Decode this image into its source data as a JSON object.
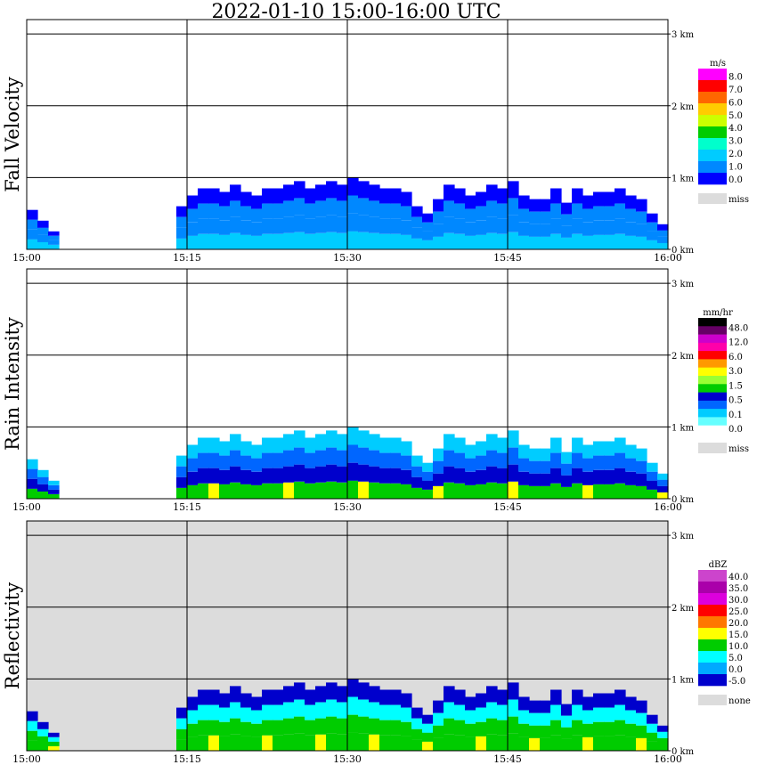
{
  "title": "2022-01-10   15:00-16:00 UTC",
  "colors": {
    "grid": "#000000",
    "missing": "#dcdcdc"
  },
  "chart_data": [
    {
      "type": "heatmap",
      "ylabel": "Fall Velocity",
      "x_ticks": [
        "15:00",
        "15:15",
        "15:30",
        "15:45",
        "16:00"
      ],
      "y_ticks": [
        "0 km",
        "1 km",
        "2 km",
        "3 km"
      ],
      "ylim_km": [
        0,
        3.2
      ],
      "legend": {
        "unit": "m/s",
        "labels": [
          "8.0",
          "7.0",
          "6.0",
          "5.0",
          "4.0",
          "3.0",
          "2.0",
          "1.0",
          "0.0"
        ],
        "colors": [
          "#ff00ff",
          "#ff0000",
          "#ff6600",
          "#ffcc00",
          "#ccff00",
          "#00cc00",
          "#00ffcc",
          "#00ccff",
          "#0088ff",
          "#0000ff"
        ],
        "missing_label": "miss"
      },
      "echo_top_km": [
        0.55,
        0.4,
        0.25,
        0.0,
        0.0,
        0.0,
        0.0,
        0.0,
        0.0,
        0.0,
        0.0,
        0.0,
        0.0,
        0.0,
        0.6,
        0.75,
        0.85,
        0.85,
        0.8,
        0.9,
        0.8,
        0.75,
        0.85,
        0.85,
        0.9,
        0.95,
        0.85,
        0.9,
        0.95,
        0.9,
        1.0,
        0.95,
        0.9,
        0.85,
        0.85,
        0.8,
        0.6,
        0.5,
        0.7,
        0.9,
        0.85,
        0.75,
        0.8,
        0.9,
        0.85,
        0.95,
        0.75,
        0.7,
        0.7,
        0.85,
        0.65,
        0.85,
        0.75,
        0.8,
        0.8,
        0.85,
        0.75,
        0.7,
        0.5,
        0.35
      ],
      "core_level": 3
    },
    {
      "type": "heatmap",
      "ylabel": "Rain Intensity",
      "x_ticks": [
        "15:00",
        "15:15",
        "15:30",
        "15:45",
        "16:00"
      ],
      "y_ticks": [
        "0 km",
        "1 km",
        "2 km",
        "3 km"
      ],
      "ylim_km": [
        0,
        3.2
      ],
      "legend": {
        "unit": "mm/hr",
        "labels": [
          "48.0",
          "12.0",
          "6.0",
          "3.0",
          "1.5",
          "0.5",
          "0.1",
          "0.0"
        ],
        "colors": [
          "#000000",
          "#660066",
          "#cc00cc",
          "#ff00aa",
          "#ff0000",
          "#ff9900",
          "#ffff00",
          "#99ff33",
          "#00cc00",
          "#0000cc",
          "#0066ff",
          "#00ccff",
          "#66ffff",
          "#ffffff"
        ],
        "missing_label": "miss"
      },
      "echo_top_km": [
        0.55,
        0.4,
        0.25,
        0.0,
        0.0,
        0.0,
        0.0,
        0.0,
        0.0,
        0.0,
        0.0,
        0.0,
        0.0,
        0.0,
        0.6,
        0.75,
        0.85,
        0.85,
        0.8,
        0.9,
        0.8,
        0.75,
        0.85,
        0.85,
        0.9,
        0.95,
        0.85,
        0.9,
        0.95,
        0.9,
        1.0,
        0.95,
        0.9,
        0.85,
        0.85,
        0.8,
        0.6,
        0.5,
        0.7,
        0.9,
        0.85,
        0.75,
        0.8,
        0.9,
        0.85,
        0.95,
        0.75,
        0.7,
        0.7,
        0.85,
        0.65,
        0.85,
        0.75,
        0.8,
        0.8,
        0.85,
        0.75,
        0.7,
        0.5,
        0.35
      ],
      "core_level": 7
    },
    {
      "type": "heatmap",
      "ylabel": "Reflectivity",
      "x_ticks": [
        "15:00",
        "15:15",
        "15:30",
        "15:45",
        "16:00"
      ],
      "y_ticks": [
        "0 km",
        "1 km",
        "2 km",
        "3 km"
      ],
      "ylim_km": [
        0,
        3.2
      ],
      "legend": {
        "unit": "dBZ",
        "labels": [
          "40.0",
          "35.0",
          "30.0",
          "25.0",
          "20.0",
          "15.0",
          "10.0",
          "5.0",
          "0.0",
          "-5.0"
        ],
        "colors": [
          "#cc44cc",
          "#aa00aa",
          "#dd00dd",
          "#ff0000",
          "#ff7700",
          "#ffff00",
          "#00cc00",
          "#00ffff",
          "#00aaff",
          "#0000cc"
        ],
        "missing_label": "none"
      },
      "echo_top_km": [
        0.55,
        0.4,
        0.25,
        0.0,
        0.0,
        0.0,
        0.0,
        0.0,
        0.0,
        0.0,
        0.0,
        0.0,
        0.0,
        0.0,
        0.6,
        0.75,
        0.85,
        0.85,
        0.8,
        0.9,
        0.8,
        0.75,
        0.85,
        0.85,
        0.9,
        0.95,
        0.85,
        0.9,
        0.95,
        0.9,
        1.0,
        0.95,
        0.9,
        0.85,
        0.85,
        0.8,
        0.6,
        0.5,
        0.7,
        0.9,
        0.85,
        0.75,
        0.8,
        0.9,
        0.85,
        0.95,
        0.75,
        0.7,
        0.7,
        0.85,
        0.65,
        0.85,
        0.75,
        0.8,
        0.8,
        0.85,
        0.75,
        0.7,
        0.5,
        0.35
      ],
      "core_level": 5
    }
  ]
}
